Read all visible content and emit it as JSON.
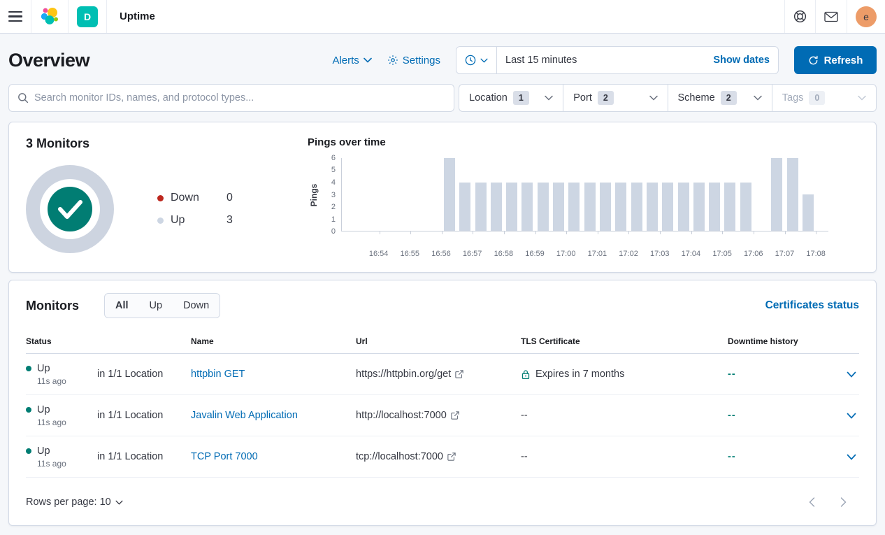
{
  "header": {
    "app_title": "Uptime",
    "space_initial": "D",
    "avatar_initial": "e"
  },
  "toolbar": {
    "page_title": "Overview",
    "alerts_label": "Alerts",
    "settings_label": "Settings",
    "time_range": "Last 15 minutes",
    "show_dates_label": "Show dates",
    "refresh_label": "Refresh"
  },
  "filters": {
    "search_placeholder": "Search monitor IDs, names, and protocol types...",
    "items": [
      {
        "label": "Location",
        "count": "1",
        "disabled": false
      },
      {
        "label": "Port",
        "count": "2",
        "disabled": false
      },
      {
        "label": "Scheme",
        "count": "2",
        "disabled": false
      },
      {
        "label": "Tags",
        "count": "0",
        "disabled": true
      }
    ]
  },
  "summary": {
    "title": "3 Monitors",
    "legend": [
      {
        "label": "Down",
        "value": "0",
        "color": "#BD271E"
      },
      {
        "label": "Up",
        "value": "3",
        "color": "#CDD6E3"
      }
    ]
  },
  "chart_data": {
    "type": "bar",
    "title": "Pings over time",
    "ylabel": "Pings",
    "xlabel": "",
    "ylim": [
      0,
      6
    ],
    "y_ticks": [
      0,
      1,
      2,
      3,
      4,
      5,
      6
    ],
    "grid": false,
    "legend_position": "none",
    "x_domain": [
      "16:52:48",
      "17:08:24"
    ],
    "x_ticks": [
      "16:54",
      "16:55",
      "16:56",
      "16:57",
      "16:58",
      "16:59",
      "17:00",
      "17:01",
      "17:02",
      "17:03",
      "17:04",
      "17:05",
      "17:06",
      "17:07",
      "17:08"
    ],
    "bucket_seconds": 30,
    "series": [
      {
        "name": "Up pings",
        "color": "#CDD6E3",
        "points": [
          {
            "x": "16:56:00",
            "y": 6
          },
          {
            "x": "16:56:30",
            "y": 4
          },
          {
            "x": "16:57:00",
            "y": 4
          },
          {
            "x": "16:57:30",
            "y": 4
          },
          {
            "x": "16:58:00",
            "y": 4
          },
          {
            "x": "16:58:30",
            "y": 4
          },
          {
            "x": "16:59:00",
            "y": 4
          },
          {
            "x": "16:59:30",
            "y": 4
          },
          {
            "x": "17:00:00",
            "y": 4
          },
          {
            "x": "17:00:30",
            "y": 4
          },
          {
            "x": "17:01:00",
            "y": 4
          },
          {
            "x": "17:01:30",
            "y": 4
          },
          {
            "x": "17:02:00",
            "y": 4
          },
          {
            "x": "17:02:30",
            "y": 4
          },
          {
            "x": "17:03:00",
            "y": 4
          },
          {
            "x": "17:03:30",
            "y": 4
          },
          {
            "x": "17:04:00",
            "y": 4
          },
          {
            "x": "17:04:30",
            "y": 4
          },
          {
            "x": "17:05:00",
            "y": 4
          },
          {
            "x": "17:05:30",
            "y": 4
          },
          {
            "x": "17:06:30",
            "y": 6
          },
          {
            "x": "17:07:00",
            "y": 6
          },
          {
            "x": "17:07:30",
            "y": 3
          }
        ]
      }
    ]
  },
  "monitors": {
    "title": "Monitors",
    "tabs": [
      "All",
      "Up",
      "Down"
    ],
    "selected_tab": "All",
    "certificates_link": "Certificates status",
    "columns": {
      "status": "Status",
      "name": "Name",
      "url": "Url",
      "tls": "TLS Certificate",
      "downtime": "Downtime history"
    },
    "rows": [
      {
        "status": "Up",
        "checked_ago": "11s ago",
        "location": "in 1/1 Location",
        "name": "httpbin GET",
        "url": "https://httpbin.org/get",
        "tls": "Expires in 7 months",
        "tls_lock": true,
        "downtime": "--"
      },
      {
        "status": "Up",
        "checked_ago": "11s ago",
        "location": "in 1/1 Location",
        "name": "Javalin Web Application",
        "url": "http://localhost:7000",
        "tls": "--",
        "tls_lock": false,
        "downtime": "--"
      },
      {
        "status": "Up",
        "checked_ago": "11s ago",
        "location": "in 1/1 Location",
        "name": "TCP Port 7000",
        "url": "tcp://localhost:7000",
        "tls": "--",
        "tls_lock": false,
        "downtime": "--"
      }
    ],
    "footer": {
      "rows_per_page": "Rows per page: 10"
    }
  },
  "colors": {
    "primary_blue": "#006BB4",
    "teal_success": "#017D73",
    "down_red": "#BD271E",
    "bar_gray_blue": "#CDD6E3",
    "border": "#D3DAE6",
    "page_bg": "#F5F7FA",
    "space_badge": "#00BFB3",
    "avatar_orange": "#ED9C68"
  }
}
